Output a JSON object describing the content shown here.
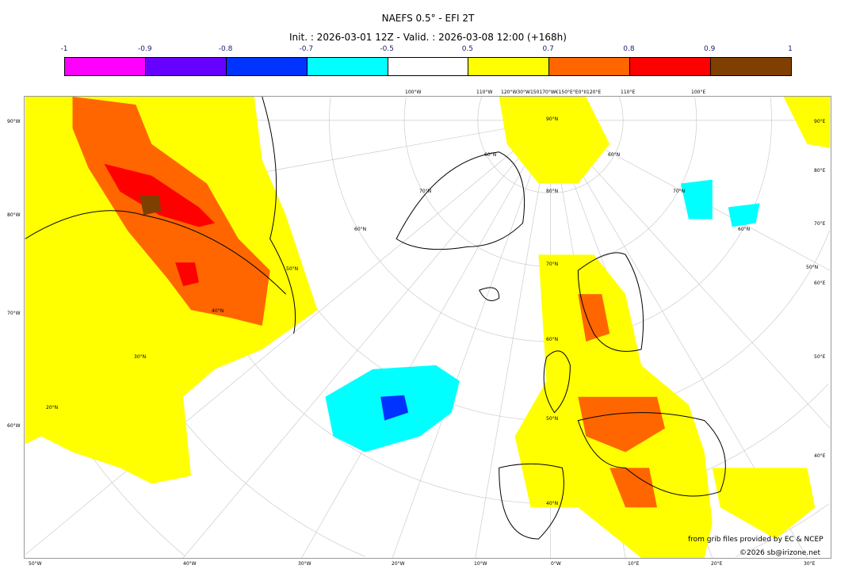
{
  "header": {
    "title": "NAEFS 0.5° - EFI 2T",
    "subtitle": "Init. : 2026-03-01 12Z - Valid. : 2026-03-08 12:00 (+168h)"
  },
  "colorbar": {
    "ticks": [
      "-1",
      "-0.9",
      "-0.8",
      "-0.7",
      "-0.5",
      "0.5",
      "0.7",
      "0.8",
      "0.9",
      "1"
    ],
    "colors": [
      "#ff00ff",
      "#6600ff",
      "#0033ff",
      "#00ffff",
      "#ffffff",
      "#ffff00",
      "#ff6600",
      "#ff0000",
      "#7f3f00"
    ]
  },
  "map": {
    "left_labels": [
      "90°W",
      "80°W",
      "70°W",
      "60°W"
    ],
    "right_labels": [
      "90°E",
      "80°E",
      "70°E",
      "60°E",
      "50°E",
      "40°E"
    ],
    "bottom_labels": [
      "50°W",
      "40°W",
      "30°W",
      "20°W",
      "10°W",
      "0°W",
      "10°E",
      "20°E",
      "30°E"
    ],
    "top_labels": [
      "100°W",
      "110°W",
      "120°W30°W150170°W€150°E°E0°II120°E",
      "110°E",
      "100°E"
    ],
    "lat_labels": [
      "90°N",
      "80°N",
      "70°N",
      "60°N",
      "50°N",
      "40°N",
      "70°N",
      "60°N",
      "50°N",
      "40°N",
      "30°N",
      "20°N",
      "60°N",
      "60°N",
      "70°N",
      "60°N",
      "50°N"
    ]
  },
  "footer": {
    "credit": "from grib files provided by EC & NCEP",
    "copyright": "©2026 sb@irizone.net"
  }
}
